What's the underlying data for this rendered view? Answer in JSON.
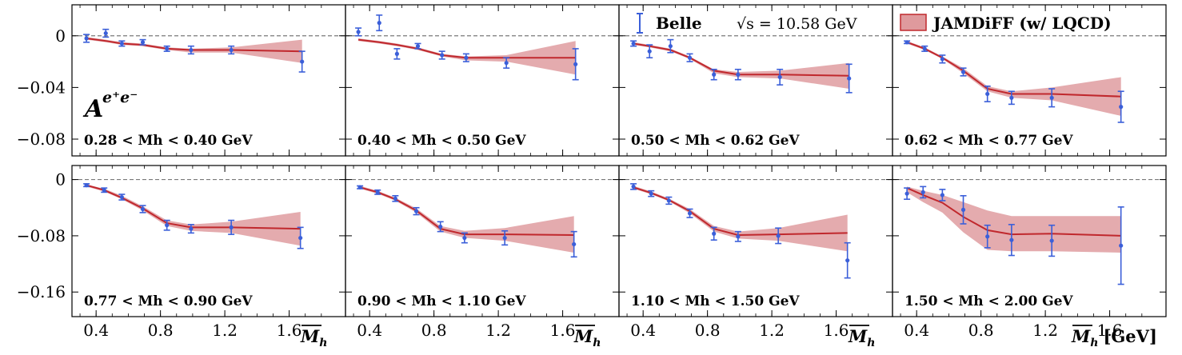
{
  "figure": {
    "observable_base": "A",
    "observable_sup": "e⁺e⁻",
    "xlabel_prefix": "M",
    "xlabel_sub": "h",
    "xlabel_unit": "[GeV]",
    "x_ticks": [
      0.4,
      0.8,
      1.2,
      1.6
    ],
    "x_tick_labels": [
      "0.4",
      "0.8",
      "1.2",
      "1.6"
    ],
    "xlim": [
      0.25,
      1.95
    ],
    "colors": {
      "data": "#3b5fd9",
      "theory": "#c0282d",
      "band": "#d9888c",
      "zero_line": "#7a7a7a"
    }
  },
  "legend": {
    "data_label": "Belle",
    "sqrt_s_label": "√s = 10.58 GeV",
    "theory_label": "JAMDiFF (w/ LQCD)"
  },
  "rows": [
    {
      "ylim": [
        -0.093,
        0.024
      ],
      "y_ticks": [
        0,
        -0.04,
        -0.08
      ],
      "y_tick_labels": [
        "0",
        "−0.04",
        "−0.08"
      ]
    },
    {
      "ylim": [
        -0.195,
        0.02
      ],
      "y_ticks": [
        0,
        -0.08,
        -0.16
      ],
      "y_tick_labels": [
        "0",
        "−0.08",
        "−0.16"
      ]
    }
  ],
  "chart_data": [
    {
      "type": "scatter",
      "bin_label": "0.28 < Mh < 0.40 GeV",
      "x": [
        0.34,
        0.46,
        0.56,
        0.69,
        0.84,
        0.99,
        1.24,
        1.68
      ],
      "data": {
        "y": [
          -0.002,
          0.002,
          -0.006,
          -0.005,
          -0.01,
          -0.011,
          -0.011,
          -0.02
        ],
        "err": [
          0.003,
          0.003,
          0.002,
          0.002,
          0.002,
          0.003,
          0.003,
          0.008
        ]
      },
      "theory": {
        "y": [
          -0.002,
          -0.004,
          -0.006,
          -0.007,
          -0.01,
          -0.011,
          -0.011,
          -0.012
        ],
        "lo": [
          -0.003,
          -0.005,
          -0.007,
          -0.008,
          -0.011,
          -0.013,
          -0.013,
          -0.021
        ],
        "hi": [
          -0.001,
          -0.003,
          -0.005,
          -0.006,
          -0.009,
          -0.01,
          -0.009,
          -0.003
        ]
      }
    },
    {
      "type": "scatter",
      "bin_label": "0.40 < Mh < 0.50 GeV",
      "x": [
        0.33,
        0.46,
        0.57,
        0.7,
        0.85,
        1.0,
        1.25,
        1.68
      ],
      "data": {
        "y": [
          0.003,
          0.01,
          -0.014,
          -0.008,
          -0.015,
          -0.017,
          -0.021,
          -0.022
        ],
        "err": [
          0.003,
          0.006,
          0.004,
          0.002,
          0.003,
          0.003,
          0.004,
          0.012
        ]
      },
      "theory": {
        "y": [
          -0.003,
          -0.005,
          -0.007,
          -0.01,
          -0.015,
          -0.017,
          -0.017,
          -0.017
        ],
        "lo": [
          -0.004,
          -0.006,
          -0.008,
          -0.011,
          -0.016,
          -0.019,
          -0.02,
          -0.03
        ],
        "hi": [
          -0.002,
          -0.004,
          -0.006,
          -0.009,
          -0.014,
          -0.016,
          -0.015,
          -0.004
        ]
      }
    },
    {
      "type": "scatter",
      "bin_label": "0.50 < Mh < 0.62 GeV",
      "x": [
        0.34,
        0.44,
        0.57,
        0.69,
        0.84,
        0.99,
        1.25,
        1.68
      ],
      "data": {
        "y": [
          -0.006,
          -0.012,
          -0.008,
          -0.017,
          -0.03,
          -0.03,
          -0.032,
          -0.033
        ],
        "err": [
          0.002,
          0.005,
          0.005,
          0.003,
          0.004,
          0.004,
          0.006,
          0.011
        ]
      },
      "theory": {
        "y": [
          -0.006,
          -0.008,
          -0.011,
          -0.017,
          -0.027,
          -0.03,
          -0.03,
          -0.031
        ],
        "lo": [
          -0.007,
          -0.009,
          -0.012,
          -0.018,
          -0.029,
          -0.032,
          -0.033,
          -0.041
        ],
        "hi": [
          -0.005,
          -0.007,
          -0.01,
          -0.016,
          -0.026,
          -0.028,
          -0.027,
          -0.021
        ]
      }
    },
    {
      "type": "scatter",
      "bin_label": "0.62 < Mh < 0.77 GeV",
      "x": [
        0.34,
        0.45,
        0.56,
        0.69,
        0.84,
        0.99,
        1.24,
        1.67
      ],
      "data": {
        "y": [
          -0.005,
          -0.01,
          -0.018,
          -0.028,
          -0.045,
          -0.048,
          -0.048,
          -0.055
        ],
        "err": [
          0.001,
          0.002,
          0.003,
          0.003,
          0.006,
          0.005,
          0.007,
          0.012
        ]
      },
      "theory": {
        "y": [
          -0.005,
          -0.01,
          -0.017,
          -0.027,
          -0.041,
          -0.045,
          -0.045,
          -0.047
        ],
        "lo": [
          -0.006,
          -0.011,
          -0.018,
          -0.029,
          -0.043,
          -0.048,
          -0.05,
          -0.062
        ],
        "hi": [
          -0.004,
          -0.009,
          -0.016,
          -0.025,
          -0.039,
          -0.043,
          -0.04,
          -0.032
        ]
      }
    },
    {
      "type": "scatter",
      "bin_label": "0.77 < Mh < 0.90 GeV",
      "x": [
        0.34,
        0.45,
        0.56,
        0.69,
        0.84,
        0.99,
        1.24,
        1.67
      ],
      "data": {
        "y": [
          -0.008,
          -0.015,
          -0.025,
          -0.042,
          -0.065,
          -0.07,
          -0.068,
          -0.083
        ],
        "err": [
          0.002,
          0.003,
          0.004,
          0.005,
          0.007,
          0.006,
          0.01,
          0.015
        ]
      },
      "theory": {
        "y": [
          -0.008,
          -0.015,
          -0.026,
          -0.041,
          -0.062,
          -0.068,
          -0.068,
          -0.07
        ],
        "lo": [
          -0.01,
          -0.017,
          -0.028,
          -0.044,
          -0.066,
          -0.073,
          -0.076,
          -0.094
        ],
        "hi": [
          -0.007,
          -0.013,
          -0.023,
          -0.038,
          -0.058,
          -0.064,
          -0.06,
          -0.046
        ]
      }
    },
    {
      "type": "scatter",
      "bin_label": "0.90 < Mh < 1.10 GeV",
      "x": [
        0.34,
        0.45,
        0.56,
        0.69,
        0.84,
        0.99,
        1.24,
        1.67
      ],
      "data": {
        "y": [
          -0.011,
          -0.018,
          -0.027,
          -0.045,
          -0.067,
          -0.083,
          -0.083,
          -0.092
        ],
        "err": [
          0.002,
          0.003,
          0.004,
          0.005,
          0.007,
          0.007,
          0.01,
          0.018
        ]
      },
      "theory": {
        "y": [
          -0.011,
          -0.018,
          -0.028,
          -0.044,
          -0.07,
          -0.078,
          -0.078,
          -0.079
        ],
        "lo": [
          -0.013,
          -0.02,
          -0.03,
          -0.047,
          -0.074,
          -0.083,
          -0.087,
          -0.104
        ],
        "hi": [
          -0.009,
          -0.016,
          -0.026,
          -0.041,
          -0.066,
          -0.073,
          -0.069,
          -0.052
        ]
      }
    },
    {
      "type": "scatter",
      "bin_label": "1.10 < Mh < 1.50 GeV",
      "x": [
        0.34,
        0.45,
        0.56,
        0.69,
        0.84,
        0.99,
        1.24,
        1.67
      ],
      "data": {
        "y": [
          -0.01,
          -0.02,
          -0.03,
          -0.048,
          -0.077,
          -0.081,
          -0.08,
          -0.115
        ],
        "err": [
          0.004,
          0.004,
          0.005,
          0.006,
          0.009,
          0.007,
          0.011,
          0.025
        ]
      },
      "theory": {
        "y": [
          -0.011,
          -0.019,
          -0.029,
          -0.045,
          -0.07,
          -0.079,
          -0.078,
          -0.076
        ],
        "lo": [
          -0.013,
          -0.021,
          -0.031,
          -0.048,
          -0.074,
          -0.084,
          -0.087,
          -0.102
        ],
        "hi": [
          -0.009,
          -0.017,
          -0.027,
          -0.042,
          -0.066,
          -0.074,
          -0.069,
          -0.05
        ]
      }
    },
    {
      "type": "scatter",
      "bin_label": "1.50 < Mh < 2.00 GeV",
      "x": [
        0.34,
        0.44,
        0.56,
        0.69,
        0.84,
        0.99,
        1.24,
        1.67
      ],
      "data": {
        "y": [
          -0.02,
          -0.018,
          -0.022,
          -0.043,
          -0.081,
          -0.086,
          -0.087,
          -0.094
        ],
        "err": [
          0.008,
          0.008,
          0.008,
          0.02,
          0.016,
          0.022,
          0.022,
          0.055
        ]
      },
      "theory": {
        "y": [
          -0.012,
          -0.022,
          -0.033,
          -0.053,
          -0.072,
          -0.078,
          -0.077,
          -0.08
        ],
        "lo": [
          -0.018,
          -0.032,
          -0.047,
          -0.075,
          -0.1,
          -0.102,
          -0.102,
          -0.104
        ],
        "hi": [
          -0.01,
          -0.016,
          -0.022,
          -0.032,
          -0.044,
          -0.052,
          -0.052,
          -0.052
        ]
      }
    }
  ]
}
